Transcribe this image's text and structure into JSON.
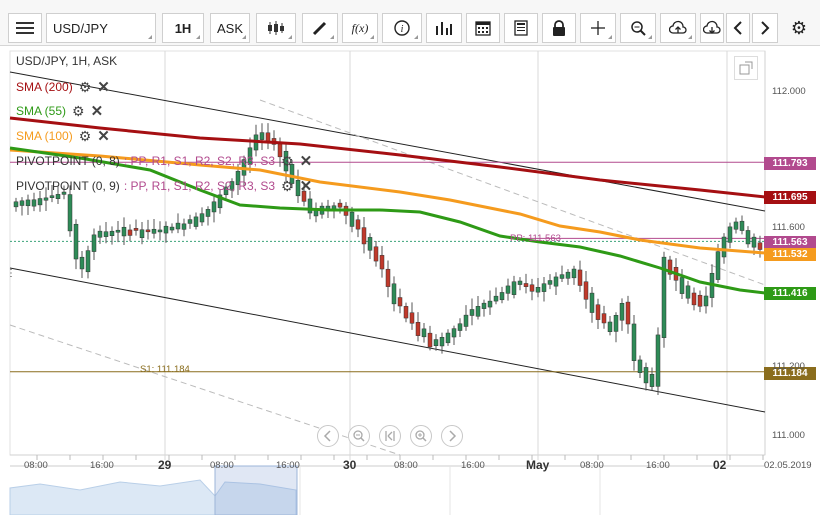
{
  "toolbar": {
    "symbol": "USD/JPY",
    "timeframe": "1H",
    "price_type": "ASK",
    "function_label": "f(x)"
  },
  "legend": {
    "title": "USD/JPY, 1H, ASK",
    "sma200": "SMA (200)",
    "sma55": "SMA (55)",
    "sma100": "SMA (100)",
    "pivot1": "PIVOTPOINT (0, 8)",
    "pivot1_params": ": PP, R1, S1, R2, S2, R3, S3",
    "pivot2": "PIVOTPOINT (0, 9)",
    "pivot2_params": ": PP, R1, S1, R2, S2, R3, S3",
    "gear": "⚙",
    "close": "✕"
  },
  "annotations": {
    "pp": "PP: 111.563",
    "s1": "S1: 111.184"
  },
  "price_tags": {
    "r_pink": "111.793",
    "sma200": "111.695",
    "last": "111.563",
    "sma100": "111.532",
    "sma55": "111.416",
    "s1": "111.184"
  },
  "colors": {
    "sma200": "#a50f12",
    "sma55": "#2e9a16",
    "sma100": "#f59b1e",
    "pivot_pink": "#b24a8e",
    "s1": "#8a6d1d",
    "last": "#b24a8e",
    "bull": "#2e8b57",
    "bear": "#c0392b"
  },
  "axes": {
    "y_ticks": [
      "112.000",
      "111.600",
      "111.200",
      "111.000"
    ],
    "x_ticks": [
      "08:00",
      "16:00",
      "29",
      "08:00",
      "16:00",
      "30",
      "08:00",
      "16:00",
      "May",
      "08:00",
      "16:00",
      "02",
      "02.05.2019"
    ]
  },
  "chart_data": {
    "type": "candlestick",
    "symbol": "USD/JPY",
    "interval": "1H",
    "ylim": [
      110.95,
      112.1
    ],
    "reference_lines": {
      "r_level": 111.793,
      "sma200_last": 111.695,
      "pp": 111.563,
      "sma100_last": 111.532,
      "sma55_last": 111.416,
      "s1": 111.184
    }
  },
  "nav_icons": [
    "prev-icon",
    "zoom-out-icon",
    "reset-icon",
    "zoom-in-icon",
    "next-icon"
  ]
}
